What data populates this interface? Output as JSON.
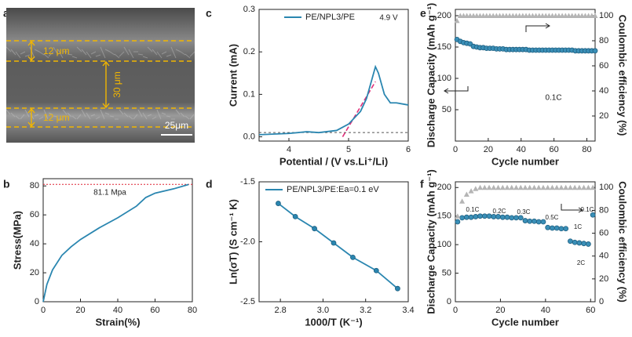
{
  "chart_data": [
    {
      "type": "image",
      "label": "a",
      "annotations": [
        "12 μm",
        "30 μm",
        "12 μm",
        "25μm"
      ]
    },
    {
      "type": "line",
      "label": "b",
      "xlabel": "Strain(%)",
      "ylabel": "Stress(MPa)",
      "xlim": [
        0,
        80
      ],
      "xticks": [
        0,
        20,
        40,
        60,
        80
      ],
      "ylim": [
        0,
        85
      ],
      "yticks": [
        0,
        20,
        40,
        60,
        80
      ],
      "reference_line": 81.1,
      "annotations": [
        "81.1 Mpa"
      ],
      "series": [
        {
          "color": "#2a86b0",
          "line": true,
          "x": [
            0,
            2,
            5,
            10,
            15,
            20,
            30,
            40,
            50,
            55,
            60,
            70,
            78
          ],
          "values": [
            0,
            12,
            22,
            32,
            38,
            43,
            51,
            58,
            66,
            72,
            75,
            78,
            81
          ]
        }
      ]
    },
    {
      "type": "line",
      "label": "c",
      "xlabel": "Potential / (V vs.Li⁺/Li)",
      "ylabel": "Current (mA)",
      "xlim": [
        3.5,
        6
      ],
      "xticks": [
        4,
        5,
        6
      ],
      "ylim": [
        -0.01,
        0.3
      ],
      "yticks": [
        {
          "value": 0,
          "label": "0.0"
        },
        0.1,
        0.2,
        0.3
      ],
      "baseline": 0.01,
      "tangent": {
        "x": [
          4.9,
          5.45
        ],
        "y": [
          0,
          0.13
        ]
      },
      "annotations": [
        "4.9 V"
      ],
      "series": [
        {
          "name": "PE/NPL3/PE",
          "color": "#2a86b0",
          "line": true,
          "x": [
            3.5,
            4.0,
            4.3,
            4.5,
            4.8,
            5.0,
            5.2,
            5.3,
            5.4,
            5.45,
            5.5,
            5.6,
            5.7,
            5.8,
            6.0
          ],
          "values": [
            0.005,
            0.008,
            0.012,
            0.01,
            0.015,
            0.03,
            0.06,
            0.09,
            0.14,
            0.165,
            0.15,
            0.1,
            0.08,
            0.08,
            0.075
          ]
        }
      ]
    },
    {
      "type": "scatter",
      "label": "d",
      "xlabel": "1000/T (K⁻¹)",
      "ylabel": "Ln(σT) (S cm⁻¹ K)",
      "xlim": [
        2.7,
        3.4
      ],
      "xticks": [
        2.8,
        {
          "value": 3.0,
          "label": "3.0"
        },
        3.2,
        3.4
      ],
      "ylim": [
        -2.5,
        -1.5
      ],
      "yticks": [
        -1.5,
        {
          "value": -2.0,
          "label": "-2.0"
        },
        -2.5
      ],
      "series": [
        {
          "name": "PE/NPL3/PE:Ea=0.1 eV",
          "color": "#2a86b0",
          "line": true,
          "marker": "circle",
          "x": [
            2.79,
            2.87,
            2.96,
            3.05,
            3.14,
            3.25,
            3.35
          ],
          "values": [
            -1.68,
            -1.79,
            -1.89,
            -2.01,
            -2.13,
            -2.24,
            -2.39
          ]
        }
      ]
    },
    {
      "type": "scatter",
      "label": "e",
      "xlabel": "Cycle number",
      "ylabel": "Discharge Capacity (mAh g⁻¹)",
      "y2label": "Coulombic efficiency (%)",
      "xlim": [
        0,
        85
      ],
      "xticks": [
        0,
        20,
        40,
        60,
        80
      ],
      "ylim": [
        0,
        210
      ],
      "yticks": [
        50,
        100,
        150,
        200
      ],
      "y2lim": [
        0,
        105
      ],
      "y2ticks": [
        20,
        40,
        60,
        80,
        100
      ],
      "annotations": [
        "0.1C"
      ],
      "series": [
        {
          "color": "#3a8fb7",
          "marker": "circle",
          "x": [
            1,
            3,
            5,
            7,
            9,
            11,
            13,
            15,
            17,
            19,
            21,
            23,
            25,
            27,
            29,
            31,
            33,
            35,
            37,
            39,
            41,
            43,
            45,
            47,
            49,
            51,
            53,
            55,
            57,
            59,
            61,
            63,
            65,
            67,
            69,
            71,
            73,
            75,
            77,
            79,
            81,
            83,
            85
          ],
          "values": [
            162,
            159,
            157,
            156,
            155,
            151,
            150,
            149,
            149,
            148,
            148,
            148,
            147,
            147,
            147,
            146,
            146,
            146,
            146,
            146,
            146,
            146,
            145,
            145,
            145,
            145,
            145,
            145,
            145,
            145,
            145,
            145,
            145,
            145,
            145,
            145,
            144,
            144,
            144,
            144,
            144,
            144,
            144
          ]
        },
        {
          "color": "#b5b5b5",
          "marker": "triangle",
          "axis": "y2",
          "x": [
            1,
            3,
            5,
            7,
            9,
            11,
            13,
            15,
            17,
            19,
            21,
            23,
            25,
            27,
            29,
            31,
            33,
            35,
            37,
            39,
            41,
            43,
            45,
            47,
            49,
            51,
            53,
            55,
            57,
            59,
            61,
            63,
            65,
            67,
            69,
            71,
            73,
            75,
            77,
            79,
            81,
            83,
            85
          ],
          "values": [
            96,
            100,
            100,
            100,
            100,
            100,
            100,
            100,
            100,
            100,
            100,
            100,
            100,
            100,
            100,
            100,
            100,
            100,
            100,
            100,
            100,
            100,
            100,
            100,
            100,
            100,
            100,
            100,
            100,
            100,
            100,
            100,
            100,
            100,
            100,
            100,
            100,
            100,
            100,
            100,
            100,
            100,
            100
          ]
        }
      ]
    },
    {
      "type": "scatter",
      "label": "f",
      "xlabel": "Cycle number",
      "ylabel": "Discharge Capacity (mAh g⁻¹)",
      "y2label": "Coulombic efficiency (%)",
      "xlim": [
        0,
        62
      ],
      "xticks": [
        0,
        20,
        40,
        60
      ],
      "ylim": [
        0,
        210
      ],
      "yticks": [
        0,
        50,
        100,
        150,
        200
      ],
      "y2lim": [
        0,
        105
      ],
      "y2ticks": [
        0,
        20,
        40,
        60,
        80,
        100
      ],
      "annotations": [
        "0.1C",
        "0.2C",
        "0.3C",
        "0.5C",
        "1C",
        "2C",
        "0.1C"
      ],
      "series": [
        {
          "color": "#3a8fb7",
          "marker": "circle",
          "x": [
            1,
            3,
            5,
            7,
            9,
            11,
            13,
            15,
            17,
            19,
            21,
            23,
            25,
            27,
            29,
            31,
            33,
            35,
            37,
            39,
            41,
            43,
            45,
            47,
            49,
            51,
            53,
            55,
            57,
            59,
            61
          ],
          "values": [
            140,
            147,
            148,
            148,
            149,
            150,
            150,
            150,
            149,
            149,
            148,
            148,
            147,
            147,
            147,
            142,
            141,
            141,
            140,
            140,
            130,
            129,
            129,
            128,
            128,
            106,
            104,
            103,
            102,
            101,
            152
          ]
        },
        {
          "color": "#b5b5b5",
          "marker": "triangle",
          "axis": "y2",
          "x": [
            1,
            3,
            5,
            7,
            9,
            11,
            13,
            15,
            17,
            19,
            21,
            23,
            25,
            27,
            29,
            31,
            33,
            35,
            37,
            39,
            41,
            43,
            45,
            47,
            49,
            51,
            53,
            55,
            57,
            59,
            61
          ],
          "values": [
            75,
            88,
            94,
            97,
            99,
            100,
            100,
            100,
            100,
            100,
            100,
            100,
            100,
            100,
            100,
            100,
            100,
            100,
            100,
            100,
            100,
            100,
            100,
            100,
            100,
            100,
            100,
            100,
            100,
            100,
            100
          ]
        }
      ]
    }
  ]
}
